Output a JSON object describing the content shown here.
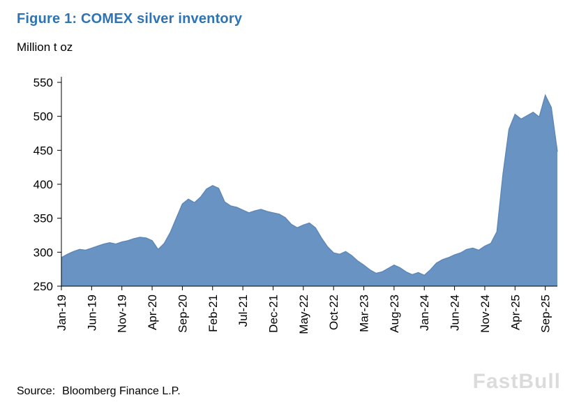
{
  "figure": {
    "title": "Figure 1: COMEX silver inventory",
    "y_unit_label": "Million t oz",
    "source_label": "Source:",
    "source_text": "Bloomberg Finance L.P.",
    "watermark": "FastBull"
  },
  "chart_data": {
    "type": "area",
    "title": "Figure 1: COMEX silver inventory",
    "ylabel": "Million t oz",
    "xlabel": "",
    "ylim": [
      250,
      550
    ],
    "y_ticks": [
      550,
      500,
      450,
      400,
      350,
      300,
      250
    ],
    "grid": false,
    "legend": null,
    "frequency": "monthly",
    "x_start": "Jan-19",
    "x_end": "Nov-25",
    "x_tick_labels": [
      "Jan-19",
      "Jun-19",
      "Nov-19",
      "Apr-20",
      "Sep-20",
      "Feb-21",
      "Jul-21",
      "Dec-21",
      "May-22",
      "Oct-22",
      "Mar-23",
      "Aug-23",
      "Jan-24",
      "Jun-24",
      "Nov-24",
      "Apr-25",
      "Sep-25"
    ],
    "x_tick_every": 5,
    "area_color": "#6993c3",
    "line_color": "#5d87b5",
    "values": [
      292,
      297,
      301,
      304,
      303,
      306,
      309,
      312,
      314,
      312,
      315,
      317,
      320,
      322,
      321,
      317,
      304,
      313,
      329,
      350,
      371,
      378,
      373,
      381,
      393,
      398,
      394,
      374,
      368,
      366,
      362,
      358,
      361,
      363,
      360,
      358,
      356,
      351,
      341,
      336,
      340,
      343,
      336,
      321,
      308,
      299,
      297,
      301,
      295,
      287,
      281,
      274,
      269,
      271,
      276,
      281,
      277,
      271,
      267,
      270,
      266,
      274,
      284,
      289,
      292,
      296,
      299,
      304,
      306,
      303,
      309,
      313,
      330,
      415,
      481,
      503,
      496,
      501,
      506,
      499,
      531,
      513,
      448
    ]
  }
}
